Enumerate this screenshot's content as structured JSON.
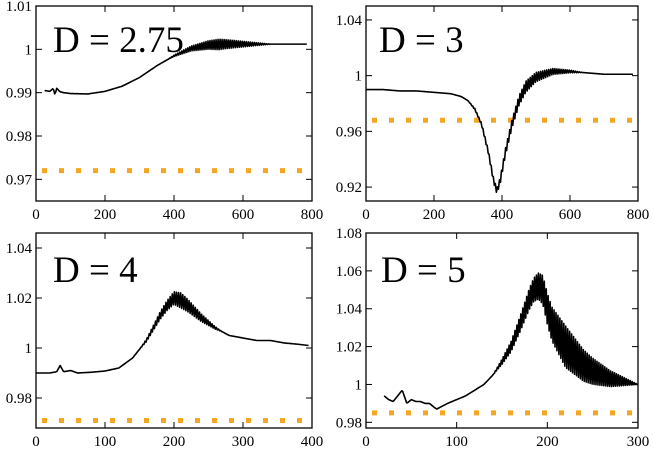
{
  "chart_data": [
    {
      "type": "line",
      "label": "D = 2.75",
      "xlim": [
        0,
        800
      ],
      "ylim": [
        0.965,
        1.01
      ],
      "xticks": [
        0,
        200,
        400,
        600,
        800
      ],
      "yticks": [
        0.97,
        0.98,
        0.99,
        1,
        1.01
      ],
      "ytick_labels": [
        "0.97",
        "0.98",
        "0.99",
        "1",
        "1.01"
      ],
      "reference_level": 0.972,
      "oscillation": {
        "x_start": 380,
        "x_end": 680,
        "amplitude_max": 0.0012
      },
      "series": [
        {
          "name": "curve",
          "color": "#000000",
          "x": [
            25,
            40,
            50,
            55,
            60,
            70,
            80,
            100,
            150,
            200,
            250,
            300,
            350,
            400,
            450,
            500,
            550,
            600,
            650,
            700,
            750,
            785
          ],
          "y": [
            0.9905,
            0.9903,
            0.991,
            0.9895,
            0.991,
            0.9902,
            0.99,
            0.9898,
            0.9897,
            0.9903,
            0.9915,
            0.9935,
            0.9962,
            0.9985,
            1.0002,
            1.001,
            1.0012,
            1.0012,
            1.0012,
            1.0012,
            1.0012,
            1.0012
          ]
        }
      ]
    },
    {
      "type": "line",
      "label": "D = 3",
      "xlim": [
        0,
        800
      ],
      "ylim": [
        0.91,
        1.05
      ],
      "xticks": [
        0,
        200,
        400,
        600,
        800
      ],
      "yticks": [
        0.92,
        0.96,
        1,
        1.04
      ],
      "ytick_labels": [
        "0.92",
        "0.96",
        "1",
        "1.04"
      ],
      "reference_level": 0.968,
      "oscillation": {
        "x_start": 300,
        "x_end": 640,
        "amplitude_max": 0.004
      },
      "series": [
        {
          "name": "curve",
          "color": "#000000",
          "x": [
            0,
            50,
            100,
            150,
            200,
            250,
            280,
            300,
            320,
            340,
            360,
            375,
            385,
            395,
            410,
            430,
            450,
            470,
            500,
            550,
            600,
            650,
            700,
            750,
            785
          ],
          "y": [
            0.99,
            0.99,
            0.989,
            0.989,
            0.988,
            0.987,
            0.985,
            0.982,
            0.976,
            0.965,
            0.945,
            0.925,
            0.917,
            0.925,
            0.945,
            0.966,
            0.982,
            0.992,
            0.999,
            1.003,
            1.003,
            1.002,
            1.001,
            1.001,
            1.001
          ]
        }
      ]
    },
    {
      "type": "line",
      "label": "D = 4",
      "xlim": [
        0,
        400
      ],
      "ylim": [
        0.968,
        1.046
      ],
      "xticks": [
        0,
        100,
        200,
        300,
        400
      ],
      "yticks": [
        0.98,
        1,
        1.02,
        1.04
      ],
      "ytick_labels": [
        "0.98",
        "1",
        "1.02",
        "1.04"
      ],
      "reference_level": 0.971,
      "oscillation": {
        "x_start": 150,
        "x_end": 270,
        "amplitude_max": 0.003
      },
      "series": [
        {
          "name": "curve",
          "color": "#000000",
          "x": [
            0,
            20,
            30,
            35,
            40,
            50,
            60,
            80,
            100,
            120,
            140,
            160,
            180,
            190,
            200,
            210,
            220,
            240,
            260,
            280,
            300,
            320,
            340,
            360,
            380,
            395
          ],
          "y": [
            0.99,
            0.99,
            0.9905,
            0.993,
            0.9905,
            0.991,
            0.99,
            0.9903,
            0.9908,
            0.992,
            0.996,
            1.003,
            1.013,
            1.017,
            1.02,
            1.019,
            1.017,
            1.012,
            1.008,
            1.005,
            1.004,
            1.003,
            1.003,
            1.002,
            1.0015,
            1.001
          ]
        }
      ]
    },
    {
      "type": "line",
      "label": "D = 5",
      "xlim": [
        0,
        300
      ],
      "ylim": [
        0.977,
        1.08
      ],
      "xticks": [
        0,
        100,
        200,
        300
      ],
      "yticks": [
        0.98,
        1,
        1.02,
        1.04,
        1.06,
        1.08
      ],
      "ytick_labels": [
        "0.98",
        "1",
        "1.02",
        "1.04",
        "1.06",
        "1.08"
      ],
      "reference_level": 0.985,
      "oscillation": {
        "x_start": 140,
        "x_end": 300,
        "amplitude_max": 0.011
      },
      "series": [
        {
          "name": "curve",
          "color": "#000000",
          "x": [
            20,
            25,
            30,
            35,
            40,
            45,
            50,
            55,
            60,
            65,
            70,
            75,
            78,
            82,
            90,
            100,
            110,
            120,
            130,
            140,
            150,
            160,
            170,
            180,
            185,
            190,
            195,
            200,
            205,
            210,
            220,
            230,
            240,
            250,
            260,
            270,
            280,
            290,
            300
          ],
          "y": [
            0.994,
            0.992,
            0.991,
            0.994,
            0.997,
            0.99,
            0.992,
            0.991,
            0.991,
            0.99,
            0.99,
            0.988,
            0.987,
            0.988,
            0.99,
            0.992,
            0.994,
            0.997,
            1.0,
            1.005,
            1.012,
            1.02,
            1.032,
            1.045,
            1.05,
            1.052,
            1.05,
            1.04,
            1.032,
            1.028,
            1.02,
            1.015,
            1.01,
            1.007,
            1.005,
            1.003,
            1.002,
            1.001,
            1.0
          ]
        }
      ]
    }
  ]
}
